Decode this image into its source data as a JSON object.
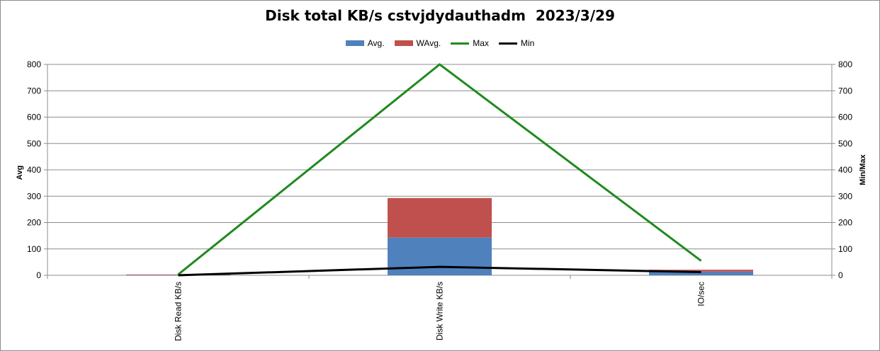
{
  "chart_data": {
    "type": "bar",
    "title": "Disk total KB/s cstvjdydauthadm  2023/3/29",
    "categories": [
      "Disk Read KB/s",
      "Disk Write KB/s",
      "IO/sec"
    ],
    "ylabel": "Avg",
    "y2label": "Min/Max",
    "ylim": [
      0,
      800
    ],
    "y2lim": [
      0,
      800
    ],
    "yticks": [
      "0",
      "100",
      "200",
      "300",
      "400",
      "500",
      "600",
      "700",
      "800"
    ],
    "y2ticks": [
      "0",
      "100",
      "200",
      "300",
      "400",
      "500",
      "600",
      "700",
      "800"
    ],
    "stacked": true,
    "grid": true,
    "legend_position": "top-center",
    "series": [
      {
        "name": "Avg.",
        "kind": "bar",
        "axis": "left",
        "color": "#4f81bd",
        "values": [
          1,
          143,
          14
        ]
      },
      {
        "name": "WAvg.",
        "kind": "bar",
        "axis": "left",
        "color": "#c0504d",
        "values": [
          2,
          150,
          7
        ]
      },
      {
        "name": "Max",
        "kind": "line",
        "axis": "right",
        "color": "#1f8a1f",
        "values": [
          3,
          800,
          55
        ]
      },
      {
        "name": "Min",
        "kind": "line",
        "axis": "right",
        "color": "#000000",
        "values": [
          0,
          32,
          12
        ]
      }
    ]
  }
}
